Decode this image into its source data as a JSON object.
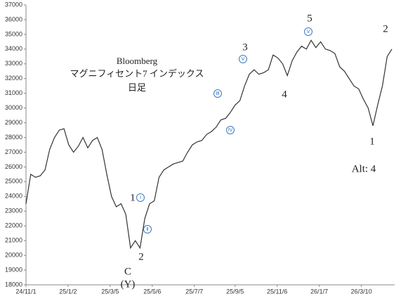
{
  "chart_data": {
    "type": "line",
    "title_lines": [
      "Bloomberg",
      "マグニフィセント7 インデックス",
      "日足"
    ],
    "x": [
      "24/11/1",
      "24/11/8",
      "24/11/15",
      "24/11/22",
      "24/11/29",
      "24/12/6",
      "24/12/13",
      "24/12/20",
      "24/12/27",
      "25/1/3",
      "25/1/10",
      "25/1/17",
      "25/1/24",
      "25/1/31",
      "25/2/7",
      "25/2/14",
      "25/2/21",
      "25/2/28",
      "25/3/7",
      "25/3/14",
      "25/3/21",
      "25/3/28",
      "25/4/4",
      "25/4/11",
      "25/4/18",
      "25/4/25",
      "25/5/2",
      "25/5/9",
      "25/5/16",
      "25/5/23",
      "25/5/30",
      "25/6/6",
      "25/6/13",
      "25/6/20",
      "25/6/27",
      "25/7/4",
      "25/7/11",
      "25/7/18",
      "25/7/25",
      "25/8/1",
      "25/8/8",
      "25/8/15",
      "25/8/22",
      "25/8/29",
      "25/9/5",
      "25/9/12",
      "25/9/19",
      "25/9/26",
      "25/10/3",
      "25/10/10",
      "25/10/17",
      "25/10/24",
      "25/10/31",
      "25/11/7",
      "25/11/14",
      "25/11/21",
      "25/11/28",
      "25/12/5",
      "25/12/12",
      "25/12/19",
      "25/12/26",
      "26/1/2",
      "26/1/9",
      "26/1/16",
      "26/1/23",
      "26/1/30",
      "26/2/6",
      "26/2/13",
      "26/2/20",
      "26/2/27",
      "26/3/6",
      "26/3/13",
      "26/3/20",
      "26/3/27",
      "26/4/3",
      "26/4/10",
      "26/4/17",
      "26/4/24"
    ],
    "series": [
      {
        "color": "#333333",
        "values": [
          23500,
          25500,
          25300,
          25400,
          25800,
          27200,
          28000,
          28500,
          28600,
          27500,
          27000,
          27400,
          28000,
          27300,
          27800,
          28000,
          27200,
          25500,
          24000,
          23300,
          23500,
          22800,
          20500,
          21000,
          20500,
          22500,
          23500,
          23700,
          25300,
          25800,
          26000,
          26200,
          26300,
          26400,
          27000,
          27500,
          27700,
          27800,
          28200,
          28400,
          28700,
          29200,
          29300,
          29700,
          30200,
          30500,
          31500,
          32300,
          32600,
          32300,
          32400,
          32600,
          33600,
          33400,
          33000,
          32200,
          33200,
          33800,
          34200,
          34000,
          34600,
          34100,
          34500,
          34000,
          33900,
          33700,
          32800,
          32500,
          32000,
          31500,
          31300,
          30600,
          30000,
          28800,
          30200,
          31500,
          33500,
          34000
        ]
      }
    ],
    "xlim": [
      "24/11/1",
      "26/4/28"
    ],
    "xticks": [
      "24/11/1",
      "25/1/2",
      "25/3/5",
      "25/5/6",
      "25/7/7",
      "25/9/5",
      "25/11/6",
      "26/1/7",
      "26/3/10"
    ],
    "ylim": [
      18000,
      37000
    ],
    "yticks": [
      18000,
      19000,
      20000,
      21000,
      22000,
      23000,
      24000,
      25000,
      26000,
      27000,
      28000,
      29000,
      30000,
      31000,
      32000,
      33000,
      34000,
      35000,
      36000,
      37000
    ],
    "annotations": [
      "1",
      "2",
      "C",
      "(Y)",
      "Ⅰ",
      "Ⅱ",
      "Ⅲ",
      "Ⅳ",
      "3",
      "Ⅴ",
      "4",
      "5",
      "Ⅴ",
      "1",
      "2",
      "Alt: 4"
    ],
    "circled": [
      false,
      false,
      false,
      false,
      true,
      true,
      true,
      true,
      false,
      true,
      false,
      false,
      true,
      false,
      false,
      false
    ]
  }
}
